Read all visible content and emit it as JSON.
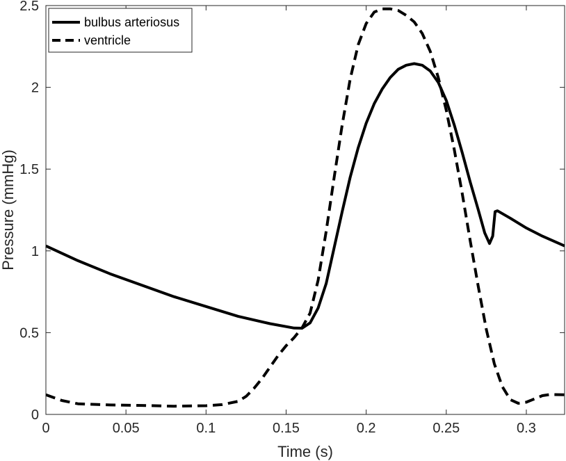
{
  "chart_data": {
    "type": "line",
    "title": "",
    "xlabel": "Time (s)",
    "ylabel": "Pressure (mmHg)",
    "xlim": [
      0,
      0.3239
    ],
    "ylim": [
      0,
      2.5
    ],
    "x_ticks": [
      0,
      0.05,
      0.1,
      0.15,
      0.2,
      0.25,
      0.3
    ],
    "x_tick_labels": [
      "0",
      "0.05",
      "0.1",
      "0.15",
      "0.2",
      "0.25",
      "0.3"
    ],
    "y_ticks": [
      0,
      0.5,
      1,
      1.5,
      2,
      2.5
    ],
    "y_tick_labels": [
      "0",
      "0.5",
      "1",
      "1.5",
      "2",
      "2.5"
    ],
    "grid": false,
    "legend_position": "top-left",
    "series": [
      {
        "name": "bulbus arteriosus",
        "style": "solid",
        "color": "#000000",
        "points": [
          [
            0,
            1.03
          ],
          [
            0.02,
            0.94
          ],
          [
            0.04,
            0.86
          ],
          [
            0.06,
            0.79
          ],
          [
            0.08,
            0.72
          ],
          [
            0.1,
            0.66
          ],
          [
            0.12,
            0.6
          ],
          [
            0.14,
            0.555
          ],
          [
            0.155,
            0.528
          ],
          [
            0.16,
            0.527
          ],
          [
            0.165,
            0.56
          ],
          [
            0.17,
            0.65
          ],
          [
            0.175,
            0.8
          ],
          [
            0.18,
            1.02
          ],
          [
            0.185,
            1.24
          ],
          [
            0.19,
            1.45
          ],
          [
            0.195,
            1.63
          ],
          [
            0.2,
            1.78
          ],
          [
            0.205,
            1.9
          ],
          [
            0.21,
            1.99
          ],
          [
            0.215,
            2.06
          ],
          [
            0.22,
            2.11
          ],
          [
            0.225,
            2.135
          ],
          [
            0.23,
            2.145
          ],
          [
            0.235,
            2.135
          ],
          [
            0.24,
            2.1
          ],
          [
            0.245,
            2.03
          ],
          [
            0.25,
            1.92
          ],
          [
            0.255,
            1.77
          ],
          [
            0.26,
            1.6
          ],
          [
            0.265,
            1.42
          ],
          [
            0.27,
            1.25
          ],
          [
            0.274,
            1.11
          ],
          [
            0.277,
            1.045
          ],
          [
            0.279,
            1.09
          ],
          [
            0.2805,
            1.24
          ],
          [
            0.282,
            1.245
          ],
          [
            0.29,
            1.2
          ],
          [
            0.3,
            1.14
          ],
          [
            0.31,
            1.09
          ],
          [
            0.3239,
            1.03
          ]
        ]
      },
      {
        "name": "ventricle",
        "style": "dashed",
        "color": "#000000",
        "points": [
          [
            0,
            0.12
          ],
          [
            0.01,
            0.085
          ],
          [
            0.02,
            0.065
          ],
          [
            0.04,
            0.058
          ],
          [
            0.06,
            0.055
          ],
          [
            0.08,
            0.05
          ],
          [
            0.1,
            0.053
          ],
          [
            0.11,
            0.06
          ],
          [
            0.12,
            0.08
          ],
          [
            0.125,
            0.11
          ],
          [
            0.13,
            0.16
          ],
          [
            0.135,
            0.22
          ],
          [
            0.14,
            0.29
          ],
          [
            0.145,
            0.36
          ],
          [
            0.15,
            0.42
          ],
          [
            0.155,
            0.47
          ],
          [
            0.16,
            0.53
          ],
          [
            0.165,
            0.62
          ],
          [
            0.17,
            0.82
          ],
          [
            0.175,
            1.12
          ],
          [
            0.18,
            1.45
          ],
          [
            0.185,
            1.77
          ],
          [
            0.19,
            2.05
          ],
          [
            0.195,
            2.26
          ],
          [
            0.2,
            2.39
          ],
          [
            0.205,
            2.46
          ],
          [
            0.21,
            2.48
          ],
          [
            0.215,
            2.48
          ],
          [
            0.22,
            2.47
          ],
          [
            0.225,
            2.44
          ],
          [
            0.23,
            2.4
          ],
          [
            0.235,
            2.33
          ],
          [
            0.24,
            2.22
          ],
          [
            0.245,
            2.06
          ],
          [
            0.25,
            1.86
          ],
          [
            0.255,
            1.62
          ],
          [
            0.26,
            1.35
          ],
          [
            0.265,
            1.06
          ],
          [
            0.27,
            0.78
          ],
          [
            0.275,
            0.52
          ],
          [
            0.28,
            0.31
          ],
          [
            0.285,
            0.17
          ],
          [
            0.29,
            0.09
          ],
          [
            0.295,
            0.068
          ],
          [
            0.3,
            0.075
          ],
          [
            0.305,
            0.095
          ],
          [
            0.31,
            0.115
          ],
          [
            0.315,
            0.122
          ],
          [
            0.3239,
            0.12
          ]
        ]
      }
    ]
  }
}
